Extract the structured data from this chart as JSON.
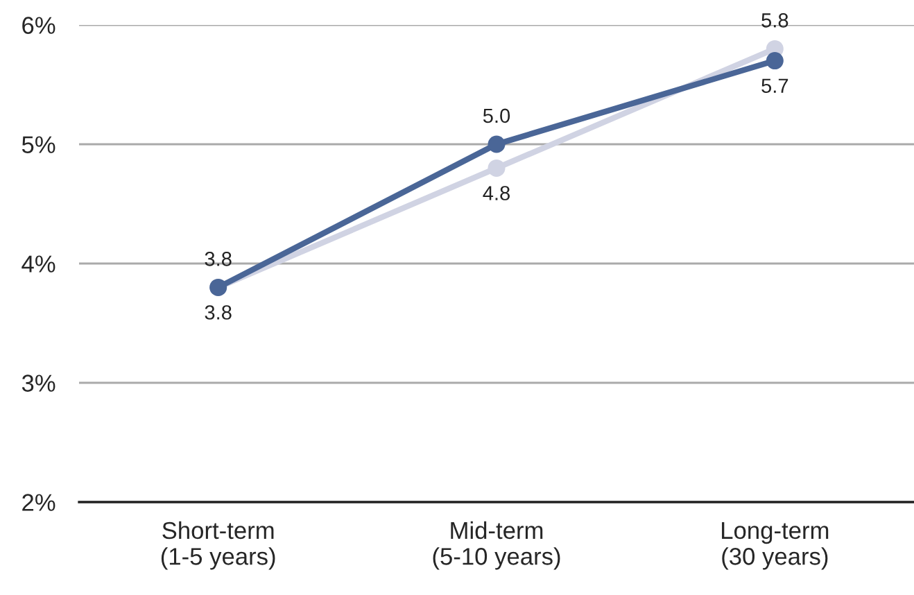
{
  "chart_data": {
    "type": "line",
    "categories": [
      "Short-term\n(1-5 years)",
      "Mid-term\n(5-10 years)",
      "Long-term\n(30 years)"
    ],
    "series": [
      {
        "color": "#4a6697",
        "values": [
          3.8,
          5.0,
          5.7
        ],
        "value_labels": [
          "3.8",
          "5.0",
          "5.7"
        ]
      },
      {
        "color": "#d0d3e3",
        "values": [
          3.8,
          4.8,
          5.8
        ],
        "value_labels": [
          "3.8",
          "4.8",
          "5.8"
        ]
      }
    ],
    "ylim": [
      2,
      6
    ],
    "yticks": [
      {
        "value": 2,
        "label": "2%"
      },
      {
        "value": 3,
        "label": "3%"
      },
      {
        "value": 4,
        "label": "4%"
      },
      {
        "value": 5,
        "label": "5%"
      },
      {
        "value": 6,
        "label": "6%"
      }
    ],
    "grid": "y",
    "marker": "circle",
    "line_style": "solid",
    "legend": false
  }
}
